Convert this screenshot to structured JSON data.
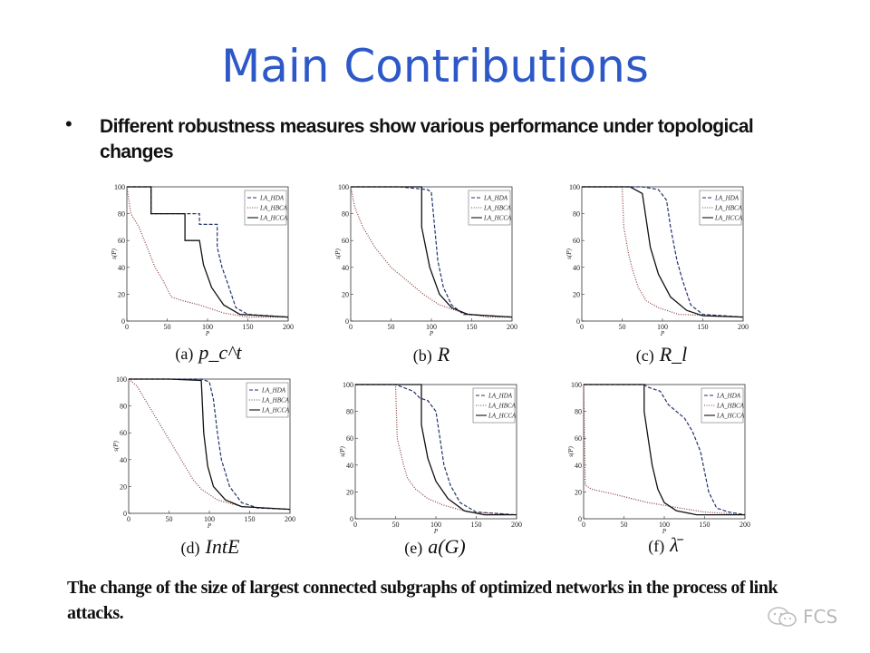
{
  "slide": {
    "title": "Main Contributions",
    "bullet": "Different robustness measures show various performance under topological changes",
    "figure_caption": "The change of the size of largest connected subgraphs of optimized networks in the process of link attacks.",
    "watermark": "FCS"
  },
  "legend_labels": [
    "LA_HDA",
    "LA_HBCA",
    "LA_HCCA"
  ],
  "axis": {
    "x_label": "P",
    "y_label": "s(P)"
  },
  "panels": [
    {
      "caption_letter": "(a)",
      "caption_symbol": "p_c^t"
    },
    {
      "caption_letter": "(b)",
      "caption_symbol": "R"
    },
    {
      "caption_letter": "(c)",
      "caption_symbol": "R_l"
    },
    {
      "caption_letter": "(d)",
      "caption_symbol": "IntE"
    },
    {
      "caption_letter": "(e)",
      "caption_symbol": "a(G)"
    },
    {
      "caption_letter": "(f)",
      "caption_symbol": "λ̄"
    }
  ],
  "chart_data": [
    {
      "type": "line",
      "xlim": [
        0,
        200
      ],
      "ylim": [
        0,
        100
      ],
      "x_ticks": [
        0,
        50,
        100,
        150,
        200
      ],
      "y_ticks": [
        0,
        20,
        40,
        60,
        80,
        100
      ],
      "xlabel": "P",
      "ylabel": "s(P)",
      "legend_position": "top-right",
      "series": [
        {
          "name": "LA_HDA",
          "style": "dashed",
          "points": [
            [
              0,
              100
            ],
            [
              30,
              100
            ],
            [
              30,
              80
            ],
            [
              90,
              80
            ],
            [
              90,
              72
            ],
            [
              112,
              72
            ],
            [
              112,
              55
            ],
            [
              118,
              40
            ],
            [
              125,
              28
            ],
            [
              135,
              10
            ],
            [
              150,
              5
            ],
            [
              200,
              3
            ]
          ]
        },
        {
          "name": "LA_HBCA",
          "style": "dotted",
          "points": [
            [
              0,
              100
            ],
            [
              5,
              80
            ],
            [
              15,
              70
            ],
            [
              25,
              55
            ],
            [
              35,
              40
            ],
            [
              45,
              30
            ],
            [
              55,
              18
            ],
            [
              70,
              15
            ],
            [
              90,
              12
            ],
            [
              120,
              6
            ],
            [
              150,
              3
            ],
            [
              200,
              3
            ]
          ]
        },
        {
          "name": "LA_HCCA",
          "style": "solid",
          "points": [
            [
              0,
              100
            ],
            [
              30,
              100
            ],
            [
              30,
              80
            ],
            [
              72,
              80
            ],
            [
              72,
              60
            ],
            [
              90,
              60
            ],
            [
              95,
              42
            ],
            [
              105,
              25
            ],
            [
              120,
              12
            ],
            [
              140,
              5
            ],
            [
              200,
              3
            ]
          ]
        }
      ]
    },
    {
      "type": "line",
      "xlim": [
        0,
        200
      ],
      "ylim": [
        0,
        100
      ],
      "x_ticks": [
        0,
        50,
        100,
        150,
        200
      ],
      "y_ticks": [
        0,
        20,
        40,
        60,
        80,
        100
      ],
      "xlabel": "P",
      "ylabel": "s(P)",
      "legend_position": "top-right",
      "series": [
        {
          "name": "LA_HDA",
          "style": "dashed",
          "points": [
            [
              0,
              100
            ],
            [
              60,
              100
            ],
            [
              95,
              98
            ],
            [
              100,
              96
            ],
            [
              104,
              70
            ],
            [
              108,
              45
            ],
            [
              115,
              25
            ],
            [
              125,
              12
            ],
            [
              140,
              5
            ],
            [
              200,
              3
            ]
          ]
        },
        {
          "name": "LA_HBCA",
          "style": "dotted",
          "points": [
            [
              0,
              100
            ],
            [
              5,
              85
            ],
            [
              15,
              70
            ],
            [
              30,
              55
            ],
            [
              50,
              40
            ],
            [
              70,
              30
            ],
            [
              90,
              20
            ],
            [
              110,
              12
            ],
            [
              140,
              6
            ],
            [
              170,
              3
            ],
            [
              200,
              3
            ]
          ]
        },
        {
          "name": "LA_HCCA",
          "style": "solid",
          "points": [
            [
              0,
              100
            ],
            [
              55,
              100
            ],
            [
              88,
              100
            ],
            [
              88,
              70
            ],
            [
              98,
              40
            ],
            [
              110,
              20
            ],
            [
              125,
              10
            ],
            [
              145,
              5
            ],
            [
              200,
              3
            ]
          ]
        }
      ]
    },
    {
      "type": "line",
      "xlim": [
        0,
        200
      ],
      "ylim": [
        0,
        100
      ],
      "x_ticks": [
        0,
        50,
        100,
        150,
        200
      ],
      "y_ticks": [
        0,
        20,
        40,
        60,
        80,
        100
      ],
      "xlabel": "P",
      "ylabel": "s(P)",
      "legend_position": "top-right",
      "series": [
        {
          "name": "LA_HDA",
          "style": "dashed",
          "points": [
            [
              0,
              100
            ],
            [
              75,
              100
            ],
            [
              95,
              98
            ],
            [
              105,
              90
            ],
            [
              110,
              70
            ],
            [
              118,
              45
            ],
            [
              125,
              30
            ],
            [
              135,
              12
            ],
            [
              150,
              5
            ],
            [
              200,
              3
            ]
          ]
        },
        {
          "name": "LA_HBCA",
          "style": "dotted",
          "points": [
            [
              0,
              100
            ],
            [
              50,
              100
            ],
            [
              52,
              70
            ],
            [
              58,
              50
            ],
            [
              62,
              40
            ],
            [
              70,
              25
            ],
            [
              80,
              15
            ],
            [
              95,
              10
            ],
            [
              120,
              5
            ],
            [
              200,
              3
            ]
          ]
        },
        {
          "name": "LA_HCCA",
          "style": "solid",
          "points": [
            [
              0,
              100
            ],
            [
              60,
              100
            ],
            [
              75,
              95
            ],
            [
              80,
              75
            ],
            [
              85,
              55
            ],
            [
              95,
              35
            ],
            [
              110,
              18
            ],
            [
              130,
              8
            ],
            [
              150,
              4
            ],
            [
              200,
              3
            ]
          ]
        }
      ]
    },
    {
      "type": "line",
      "xlim": [
        0,
        200
      ],
      "ylim": [
        0,
        100
      ],
      "x_ticks": [
        0,
        50,
        100,
        150,
        200
      ],
      "y_ticks": [
        0,
        20,
        40,
        60,
        80,
        100
      ],
      "xlabel": "P",
      "ylabel": "s(P)",
      "legend_position": "top-right",
      "series": [
        {
          "name": "LA_HDA",
          "style": "dashed",
          "points": [
            [
              0,
              100
            ],
            [
              50,
              100
            ],
            [
              90,
              100
            ],
            [
              100,
              98
            ],
            [
              105,
              85
            ],
            [
              110,
              60
            ],
            [
              115,
              40
            ],
            [
              125,
              20
            ],
            [
              140,
              8
            ],
            [
              160,
              4
            ],
            [
              200,
              3
            ]
          ]
        },
        {
          "name": "LA_HBCA",
          "style": "dotted",
          "points": [
            [
              0,
              100
            ],
            [
              10,
              95
            ],
            [
              20,
              85
            ],
            [
              30,
              75
            ],
            [
              40,
              65
            ],
            [
              50,
              55
            ],
            [
              60,
              45
            ],
            [
              70,
              35
            ],
            [
              80,
              25
            ],
            [
              90,
              18
            ],
            [
              110,
              10
            ],
            [
              140,
              5
            ],
            [
              200,
              3
            ]
          ]
        },
        {
          "name": "LA_HCCA",
          "style": "solid",
          "points": [
            [
              0,
              100
            ],
            [
              50,
              100
            ],
            [
              90,
              99
            ],
            [
              93,
              60
            ],
            [
              98,
              35
            ],
            [
              105,
              20
            ],
            [
              120,
              10
            ],
            [
              140,
              5
            ],
            [
              200,
              3
            ]
          ]
        }
      ]
    },
    {
      "type": "line",
      "xlim": [
        0,
        200
      ],
      "ylim": [
        0,
        100
      ],
      "x_ticks": [
        0,
        50,
        100,
        150,
        200
      ],
      "y_ticks": [
        0,
        20,
        40,
        60,
        80,
        100
      ],
      "xlabel": "P",
      "ylabel": "s(P)",
      "legend_position": "top-right",
      "series": [
        {
          "name": "LA_HDA",
          "style": "dashed",
          "points": [
            [
              0,
              100
            ],
            [
              50,
              100
            ],
            [
              72,
              95
            ],
            [
              80,
              90
            ],
            [
              90,
              88
            ],
            [
              100,
              80
            ],
            [
              105,
              60
            ],
            [
              110,
              40
            ],
            [
              118,
              25
            ],
            [
              130,
              12
            ],
            [
              150,
              5
            ],
            [
              200,
              3
            ]
          ]
        },
        {
          "name": "LA_HBCA",
          "style": "dotted",
          "points": [
            [
              0,
              100
            ],
            [
              50,
              100
            ],
            [
              52,
              60
            ],
            [
              60,
              40
            ],
            [
              65,
              30
            ],
            [
              75,
              22
            ],
            [
              90,
              15
            ],
            [
              110,
              10
            ],
            [
              140,
              5
            ],
            [
              200,
              3
            ]
          ]
        },
        {
          "name": "LA_HCCA",
          "style": "solid",
          "points": [
            [
              0,
              100
            ],
            [
              50,
              100
            ],
            [
              82,
              100
            ],
            [
              82,
              70
            ],
            [
              90,
              45
            ],
            [
              100,
              28
            ],
            [
              115,
              15
            ],
            [
              135,
              6
            ],
            [
              160,
              3
            ],
            [
              200,
              3
            ]
          ]
        }
      ]
    },
    {
      "type": "line",
      "xlim": [
        0,
        200
      ],
      "ylim": [
        0,
        100
      ],
      "x_ticks": [
        0,
        50,
        100,
        150,
        200
      ],
      "y_ticks": [
        0,
        20,
        40,
        60,
        80,
        100
      ],
      "xlabel": "P",
      "ylabel": "s(P)",
      "legend_position": "top-right",
      "series": [
        {
          "name": "LA_HDA",
          "style": "dashed",
          "points": [
            [
              0,
              100
            ],
            [
              40,
              100
            ],
            [
              75,
              100
            ],
            [
              80,
              98
            ],
            [
              95,
              95
            ],
            [
              105,
              85
            ],
            [
              115,
              80
            ],
            [
              125,
              75
            ],
            [
              135,
              65
            ],
            [
              145,
              50
            ],
            [
              150,
              35
            ],
            [
              155,
              20
            ],
            [
              165,
              8
            ],
            [
              180,
              5
            ],
            [
              200,
              3
            ]
          ]
        },
        {
          "name": "LA_HBCA",
          "style": "dotted",
          "points": [
            [
              0,
              100
            ],
            [
              2,
              25
            ],
            [
              10,
              22
            ],
            [
              25,
              20
            ],
            [
              40,
              18
            ],
            [
              60,
              15
            ],
            [
              80,
              12
            ],
            [
              100,
              10
            ],
            [
              120,
              8
            ],
            [
              150,
              5
            ],
            [
              200,
              3
            ]
          ]
        },
        {
          "name": "LA_HCCA",
          "style": "solid",
          "points": [
            [
              0,
              100
            ],
            [
              50,
              100
            ],
            [
              75,
              100
            ],
            [
              75,
              80
            ],
            [
              80,
              60
            ],
            [
              85,
              40
            ],
            [
              92,
              22
            ],
            [
              100,
              12
            ],
            [
              115,
              6
            ],
            [
              140,
              3
            ],
            [
              200,
              3
            ]
          ]
        }
      ]
    }
  ]
}
